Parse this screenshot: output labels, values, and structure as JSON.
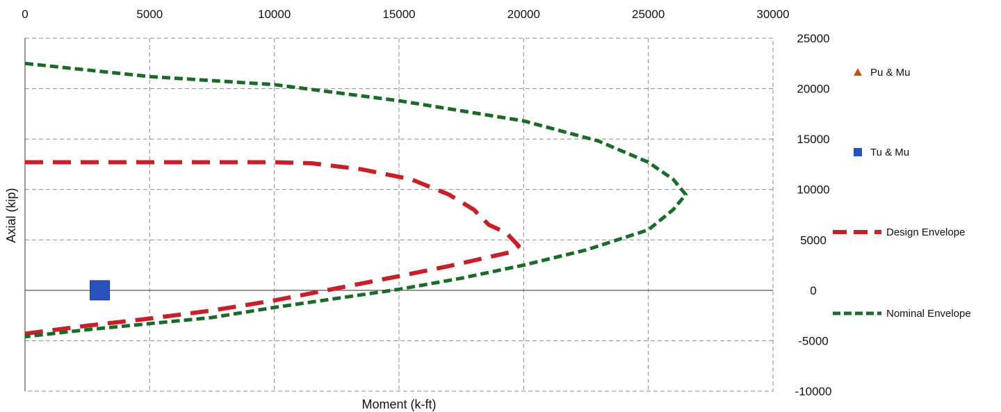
{
  "chart_data": {
    "type": "scatter",
    "title": "",
    "xlabel": "Moment (k-ft)",
    "ylabel": "Axial (kip)",
    "xlim": [
      0,
      30000
    ],
    "ylim": [
      -10000,
      25000
    ],
    "x_ticks": [
      "0",
      "5000",
      "10000",
      "15000",
      "20000",
      "25000",
      "30000"
    ],
    "x_tick_values": [
      0,
      5000,
      10000,
      15000,
      20000,
      25000,
      30000
    ],
    "y_ticks": [
      "25000",
      "20000",
      "15000",
      "10000",
      "5000",
      "0",
      "-5000",
      "-10000"
    ],
    "y_tick_values": [
      25000,
      20000,
      15000,
      10000,
      5000,
      0,
      -5000,
      -10000
    ],
    "x_axis_position": "top",
    "y_axis_position": "right",
    "grid": true,
    "legend_position": "right",
    "series": [
      {
        "name": "Pu & Mu",
        "kind": "marker",
        "marker": "triangle",
        "color": "#b5561c",
        "points": []
      },
      {
        "name": "Tu & Mu",
        "kind": "marker",
        "marker": "square",
        "color": "#2a52be",
        "points": [
          [
            3000,
            0
          ]
        ]
      },
      {
        "name": "Design Envelope",
        "kind": "line",
        "dash": "dashed",
        "color": "#c8202a",
        "points": [
          [
            0,
            12700
          ],
          [
            5000,
            12700
          ],
          [
            10000,
            12700
          ],
          [
            11500,
            12600
          ],
          [
            13500,
            12000
          ],
          [
            15500,
            11000
          ],
          [
            17000,
            9500
          ],
          [
            18000,
            8000
          ],
          [
            18600,
            6500
          ],
          [
            19300,
            5700
          ],
          [
            19800,
            4400
          ],
          [
            19500,
            3800
          ],
          [
            17000,
            2400
          ],
          [
            15000,
            1400
          ],
          [
            12500,
            200
          ],
          [
            10000,
            -1000
          ],
          [
            7500,
            -2000
          ],
          [
            5000,
            -2800
          ],
          [
            2500,
            -3500
          ],
          [
            0,
            -4300
          ]
        ]
      },
      {
        "name": "Nominal Envelope",
        "kind": "line",
        "dash": "dashed",
        "color": "#1a6b2a",
        "points": [
          [
            0,
            22500
          ],
          [
            5000,
            21200
          ],
          [
            10000,
            20400
          ],
          [
            15000,
            18800
          ],
          [
            20000,
            16800
          ],
          [
            23000,
            14800
          ],
          [
            25000,
            12700
          ],
          [
            26000,
            11000
          ],
          [
            26500,
            9500
          ],
          [
            26000,
            8000
          ],
          [
            25000,
            6000
          ],
          [
            22500,
            4000
          ],
          [
            20000,
            2500
          ],
          [
            17500,
            1200
          ],
          [
            15000,
            100
          ],
          [
            12500,
            -800
          ],
          [
            10000,
            -1700
          ],
          [
            7500,
            -2700
          ],
          [
            5000,
            -3300
          ],
          [
            2500,
            -3900
          ],
          [
            0,
            -4600
          ]
        ]
      }
    ]
  }
}
